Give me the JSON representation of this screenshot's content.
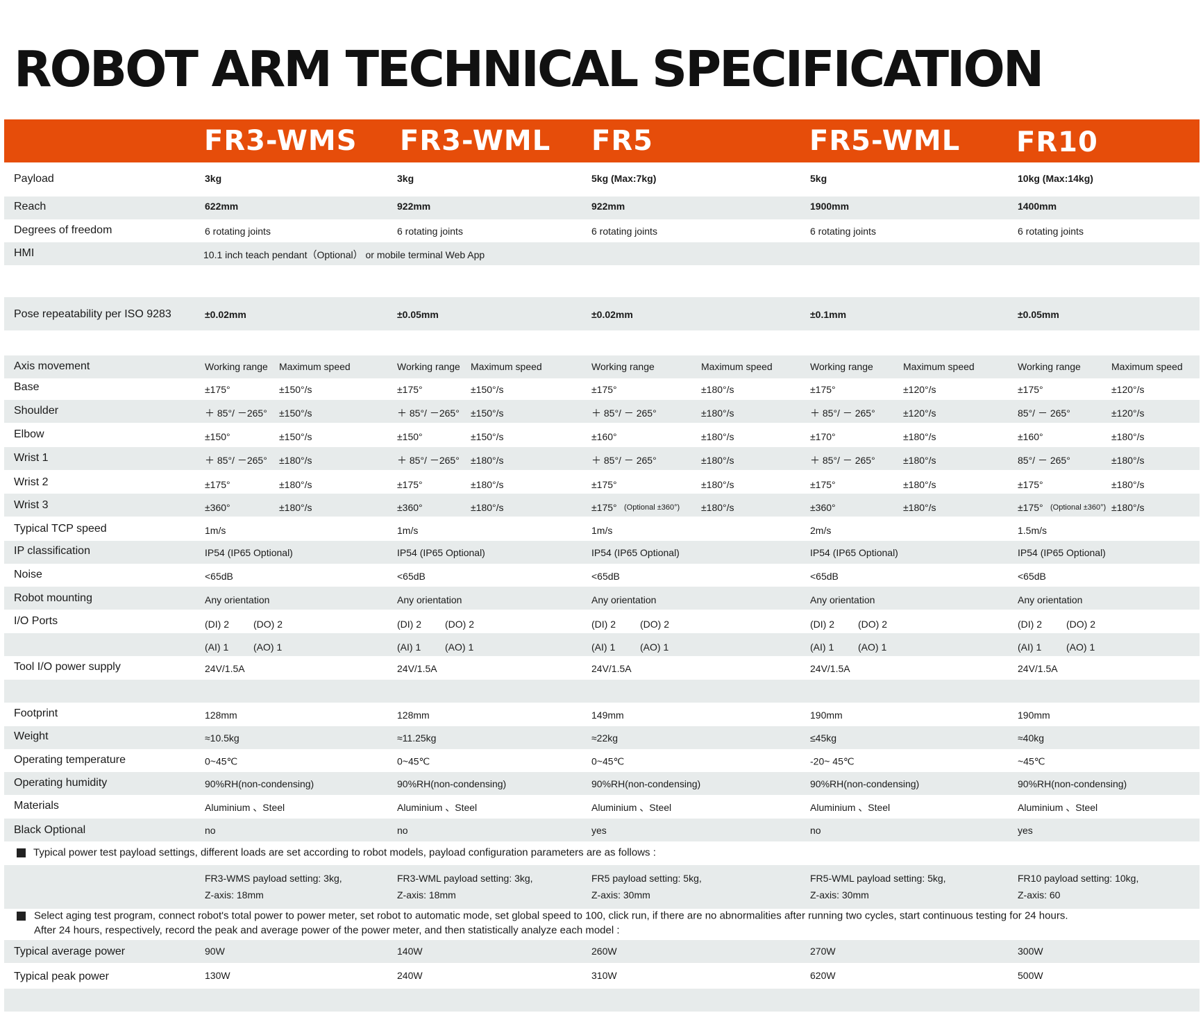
{
  "title": "ROBOT ARM TECHNICAL SPECIFICATION",
  "colors": {
    "header": "#e64d0a",
    "stripe": "#e7ebeb"
  },
  "models": [
    "FR3-WMS",
    "FR3-WML",
    "FR5",
    "FR5-WML",
    "FR10"
  ],
  "labels": {
    "payload": "Payload",
    "reach": "Reach",
    "dof": "Degrees of freedom",
    "hmi": "HMI",
    "pose": "Pose repeatability per ISO 9283",
    "axis": "Axis movement",
    "base": "Base",
    "shoulder": "Shoulder",
    "elbow": "Elbow",
    "wrist1": "Wrist 1",
    "wrist2": "Wrist 2",
    "wrist3": "Wrist 3",
    "tcp": "Typical TCP speed",
    "ip": "IP classification",
    "noise": "Noise",
    "mounting": "Robot mounting",
    "io": "I/O Ports",
    "toolio": "Tool I/O power supply",
    "footprint": "Footprint",
    "weight": "Weight",
    "optemp": "Operating temperature",
    "ophum": "Operating humidity",
    "materials": "Materials",
    "black": "Black Optional",
    "avgpower": "Typical average power",
    "peakpower": "Typical peak power"
  },
  "payload": [
    "3kg",
    "3kg",
    "5kg (Max:7kg)",
    "5kg",
    "10kg (Max:14kg)"
  ],
  "reach": [
    "622mm",
    "922mm",
    "922mm",
    "1900mm",
    "1400mm"
  ],
  "dof": [
    "6 rotating joints",
    "6 rotating joints",
    "6 rotating joints",
    "6 rotating joints",
    "6 rotating joints"
  ],
  "hmi": "10.1 inch teach pendant（Optional）  or mobile terminal Web App",
  "pose": [
    "±0.02mm",
    "±0.05mm",
    "±0.02mm",
    "±0.1mm",
    "±0.05mm"
  ],
  "axis_headers": {
    "range": "Working range",
    "speed": "Maximum speed"
  },
  "joints": {
    "base": {
      "range": [
        "±175°",
        "±175°",
        "±175°",
        "±175°",
        "±175°"
      ],
      "speed": [
        "±150°/s",
        "±150°/s",
        "±180°/s",
        "±120°/s",
        "±120°/s"
      ]
    },
    "shoulder": {
      "range": [
        "＋ 85°/ －265°",
        "＋ 85°/ －265°",
        "＋ 85°/  － 265°",
        "＋ 85°/  － 265°",
        "85°/  － 265°"
      ],
      "speed": [
        "±150°/s",
        "±150°/s",
        "±180°/s",
        "±120°/s",
        "±120°/s"
      ]
    },
    "elbow": {
      "range": [
        "±150°",
        "±150°",
        "±160°",
        "±170°",
        "±160°"
      ],
      "speed": [
        "±150°/s",
        "±150°/s",
        "±180°/s",
        "±180°/s",
        "±180°/s"
      ]
    },
    "wrist1": {
      "range": [
        "＋ 85°/ －265°",
        "＋ 85°/ －265°",
        "＋ 85°/  － 265°",
        "＋ 85°/  － 265°",
        "85°/  － 265°"
      ],
      "speed": [
        "±180°/s",
        "±180°/s",
        "±180°/s",
        "±180°/s",
        "±180°/s"
      ]
    },
    "wrist2": {
      "range": [
        "±175°",
        "±175°",
        "±175°",
        "±175°",
        "±175°"
      ],
      "speed": [
        "±180°/s",
        "±180°/s",
        "±180°/s",
        "±180°/s",
        "±180°/s"
      ]
    },
    "wrist3": {
      "range": [
        "±360°",
        "±360°",
        "±175°",
        "±360°",
        "±175°"
      ],
      "range_note": [
        "",
        "",
        "(Optional  ±360°)",
        "",
        "(Optional  ±360°)"
      ],
      "speed": [
        "±180°/s",
        "±180°/s",
        "±180°/s",
        "±180°/s",
        "±180°/s"
      ]
    }
  },
  "tcp": [
    "1m/s",
    "1m/s",
    "1m/s",
    "2m/s",
    "1.5m/s"
  ],
  "ip": [
    "IP54 (IP65 Optional)",
    "IP54 (IP65 Optional)",
    "IP54 (IP65 Optional)",
    "IP54 (IP65 Optional)",
    "IP54 (IP65 Optional)"
  ],
  "noise": [
    "<65dB",
    "<65dB",
    "<65dB",
    "<65dB",
    "<65dB"
  ],
  "mounting": [
    "Any orientation",
    "Any orientation",
    "Any orientation",
    "Any orientation",
    "Any orientation"
  ],
  "io": {
    "di": "(DI) 2",
    "do": "(DO) 2",
    "ai": "(AI) 1",
    "ao": "(AO) 1"
  },
  "toolio": [
    "24V/1.5A",
    "24V/1.5A",
    "24V/1.5A",
    "24V/1.5A",
    "24V/1.5A"
  ],
  "footprint": [
    "128mm",
    "128mm",
    "149mm",
    "190mm",
    "190mm"
  ],
  "weight": [
    "≈10.5kg",
    "≈11.25kg",
    "≈22kg",
    "≤45kg",
    "≈40kg"
  ],
  "optemp": [
    "0~45℃",
    "0~45℃",
    "0~45℃",
    "-20~ 45℃",
    "~45℃"
  ],
  "ophum": [
    "90%RH(non-condensing)",
    "90%RH(non-condensing)",
    "90%RH(non-condensing)",
    "90%RH(non-condensing)",
    "90%RH(non-condensing)"
  ],
  "materials": [
    "Aluminium 、Steel",
    "Aluminium 、Steel",
    "Aluminium 、Steel",
    "Aluminium 、Steel",
    "Aluminium 、Steel"
  ],
  "black": [
    "no",
    "no",
    "yes",
    "no",
    "yes"
  ],
  "note1": "Typical power test payload settings, different loads are set according to robot models, payload configuration parameters are as follows :",
  "payload_settings": [
    {
      "line1": "FR3-WMS payload setting: 3kg,",
      "line2": "Z-axis: 18mm"
    },
    {
      "line1": "FR3-WML payload setting: 3kg,",
      "line2": "Z-axis: 18mm"
    },
    {
      "line1": "FR5 payload setting: 5kg,",
      "line2": "Z-axis: 30mm"
    },
    {
      "line1": "FR5-WML payload setting: 5kg,",
      "line2": "Z-axis: 30mm"
    },
    {
      "line1": "FR10 payload setting: 10kg,",
      "line2": "Z-axis: 60"
    }
  ],
  "note2_line1": "Select aging test program, connect robot's total power to power meter, set robot to automatic mode, set global speed to 100, click run, if there are no abnormalities after running two cycles, start continuous testing for 24 hours.",
  "note2_line2": "After 24 hours, respectively, record the peak and average power of the power meter, and then statistically analyze each model :",
  "avgpower": [
    "90W",
    "140W",
    "260W",
    "270W",
    "300W"
  ],
  "peakpower": [
    "130W",
    "240W",
    "310W",
    "620W",
    "500W"
  ]
}
